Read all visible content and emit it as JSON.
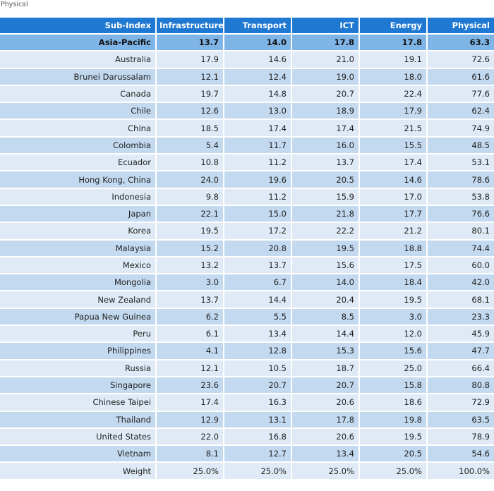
{
  "caption": "Physical",
  "chart_data": {
    "type": "table",
    "columns": [
      "Sub-Index",
      "Infrastructure",
      "Transport",
      "ICT",
      "Energy",
      "Physical"
    ],
    "region": {
      "name": "Asia-Pacific",
      "values": [
        "13.7",
        "14.0",
        "17.8",
        "17.8",
        "63.3"
      ]
    },
    "rows": [
      {
        "name": "Australia",
        "values": [
          "17.9",
          "14.6",
          "21.0",
          "19.1",
          "72.6"
        ]
      },
      {
        "name": "Brunei Darussalam",
        "values": [
          "12.1",
          "12.4",
          "19.0",
          "18.0",
          "61.6"
        ]
      },
      {
        "name": "Canada",
        "values": [
          "19.7",
          "14.8",
          "20.7",
          "22.4",
          "77.6"
        ]
      },
      {
        "name": "Chile",
        "values": [
          "12.6",
          "13.0",
          "18.9",
          "17.9",
          "62.4"
        ]
      },
      {
        "name": "China",
        "values": [
          "18.5",
          "17.4",
          "17.4",
          "21.5",
          "74.9"
        ]
      },
      {
        "name": "Colombia",
        "values": [
          "5.4",
          "11.7",
          "16.0",
          "15.5",
          "48.5"
        ]
      },
      {
        "name": "Ecuador",
        "values": [
          "10.8",
          "11.2",
          "13.7",
          "17.4",
          "53.1"
        ]
      },
      {
        "name": "Hong Kong, China",
        "values": [
          "24.0",
          "19.6",
          "20.5",
          "14.6",
          "78.6"
        ]
      },
      {
        "name": "Indonesia",
        "values": [
          "9.8",
          "11.2",
          "15.9",
          "17.0",
          "53.8"
        ]
      },
      {
        "name": "Japan",
        "values": [
          "22.1",
          "15.0",
          "21.8",
          "17.7",
          "76.6"
        ]
      },
      {
        "name": "Korea",
        "values": [
          "19.5",
          "17.2",
          "22.2",
          "21.2",
          "80.1"
        ]
      },
      {
        "name": "Malaysia",
        "values": [
          "15.2",
          "20.8",
          "19.5",
          "18.8",
          "74.4"
        ]
      },
      {
        "name": "Mexico",
        "values": [
          "13.2",
          "13.7",
          "15.6",
          "17.5",
          "60.0"
        ]
      },
      {
        "name": "Mongolia",
        "values": [
          "3.0",
          "6.7",
          "14.0",
          "18.4",
          "42.0"
        ]
      },
      {
        "name": "New Zealand",
        "values": [
          "13.7",
          "14.4",
          "20.4",
          "19.5",
          "68.1"
        ]
      },
      {
        "name": "Papua New Guinea",
        "values": [
          "6.2",
          "5.5",
          "8.5",
          "3.0",
          "23.3"
        ]
      },
      {
        "name": "Peru",
        "values": [
          "6.1",
          "13.4",
          "14.4",
          "12.0",
          "45.9"
        ]
      },
      {
        "name": "Philippines",
        "values": [
          "4.1",
          "12.8",
          "15.3",
          "15.6",
          "47.7"
        ]
      },
      {
        "name": "Russia",
        "values": [
          "12.1",
          "10.5",
          "18.7",
          "25.0",
          "66.4"
        ]
      },
      {
        "name": "Singapore",
        "values": [
          "23.6",
          "20.7",
          "20.7",
          "15.8",
          "80.8"
        ]
      },
      {
        "name": "Chinese Taipei",
        "values": [
          "17.4",
          "16.3",
          "20.6",
          "18.6",
          "72.9"
        ]
      },
      {
        "name": "Thailand",
        "values": [
          "12.9",
          "13.1",
          "17.8",
          "19.8",
          "63.5"
        ]
      },
      {
        "name": "United States",
        "values": [
          "22.0",
          "16.8",
          "20.6",
          "19.5",
          "78.9"
        ]
      },
      {
        "name": "Vietnam",
        "values": [
          "8.1",
          "12.7",
          "13.4",
          "20.5",
          "54.6"
        ]
      }
    ],
    "weight": {
      "name": "Weight",
      "values": [
        "25.0%",
        "25.0%",
        "25.0%",
        "25.0%",
        "100.0%"
      ]
    }
  },
  "colors": {
    "header_bg": "#1f78d1",
    "region_bg": "#7fb4e6",
    "row_light": "#dfeaf6",
    "row_dark": "#c3d9ef"
  }
}
